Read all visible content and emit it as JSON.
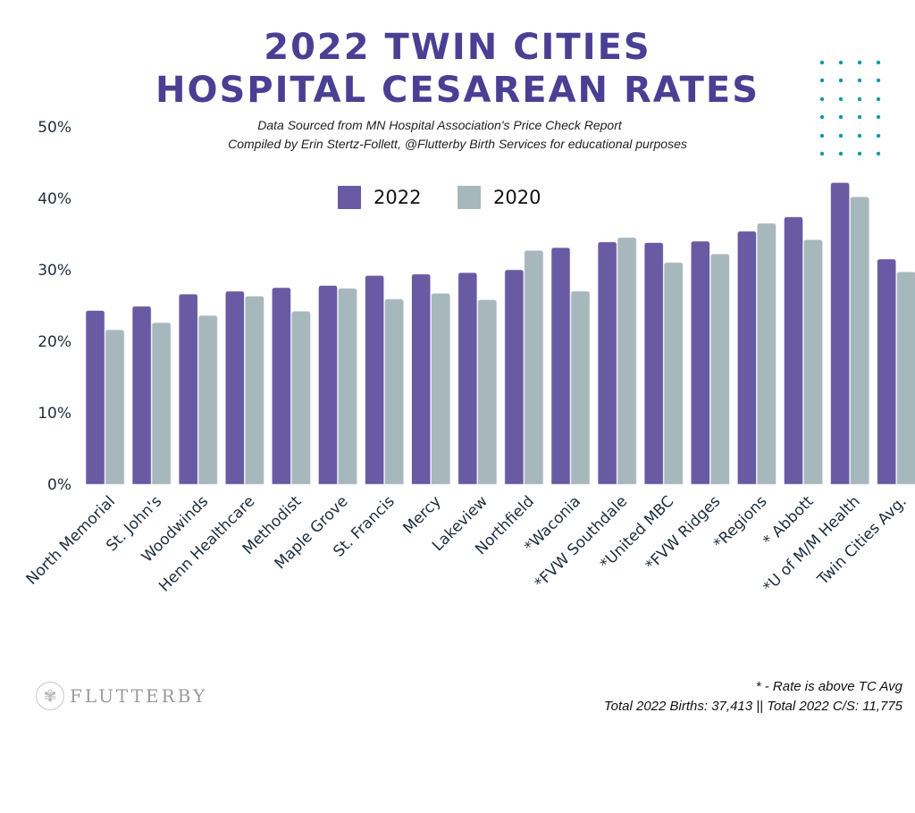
{
  "header": {
    "title_line1": "2022 TWIN CITIES",
    "title_line2": "HOSPITAL CESAREAN RATES",
    "subtitle_line1": "Data Sourced from MN Hospital Association's Price Check Report",
    "subtitle_line2": "Compiled by Erin Stertz-Follett, @Flutterby Birth Services for educational purposes"
  },
  "colors": {
    "title": "#4b3f93",
    "series_2022": "#685ba3",
    "series_2020": "#a7b8bc",
    "dots": "#0e9aa0",
    "axis_text": "#1d2d3c"
  },
  "legend": [
    {
      "label": "2022",
      "color": "#685ba3"
    },
    {
      "label": "2020",
      "color": "#a7b8bc"
    }
  ],
  "footer": {
    "logo_text": "FLUTTERBY",
    "logo_icon": "butterfly-icon",
    "note": "* - Rate is above TC Avg",
    "totals": "Total 2022 Births: 37,413 || Total 2022 C/S: 11,775"
  },
  "chart_data": {
    "type": "bar",
    "title": "2022 TWIN CITIES HOSPITAL CESAREAN RATES",
    "xlabel": "",
    "ylabel": "",
    "ylim": [
      0,
      50
    ],
    "yticks": [
      "0%",
      "10%",
      "20%",
      "30%",
      "40%",
      "50%"
    ],
    "ytick_values": [
      0,
      10,
      20,
      30,
      40,
      50
    ],
    "grid": false,
    "legend_position": "top-center",
    "categories": [
      "North Memorial",
      "St. John's",
      "Woodwinds",
      "Henn Healthcare",
      "Methodist",
      "Maple Grove",
      "St. Francis",
      "Mercy",
      "Lakeview",
      "Northfield",
      "*Waconia",
      "*FVW Southdale",
      "*United MBC",
      "*FVW Ridges",
      "*Regions",
      "* Abbott",
      "*U of M/M Health",
      "Twin Cities Avg."
    ],
    "series": [
      {
        "name": "2022",
        "values": [
          24.3,
          24.9,
          26.6,
          27.0,
          27.5,
          27.8,
          29.2,
          29.4,
          29.6,
          30.0,
          33.1,
          33.9,
          33.8,
          34.0,
          35.4,
          37.4,
          42.2,
          31.5
        ]
      },
      {
        "name": "2020",
        "values": [
          21.6,
          22.6,
          23.6,
          26.3,
          24.2,
          27.4,
          25.9,
          26.7,
          25.8,
          32.7,
          27.0,
          34.5,
          31.0,
          32.2,
          36.5,
          34.2,
          40.2,
          29.7
        ]
      }
    ]
  }
}
